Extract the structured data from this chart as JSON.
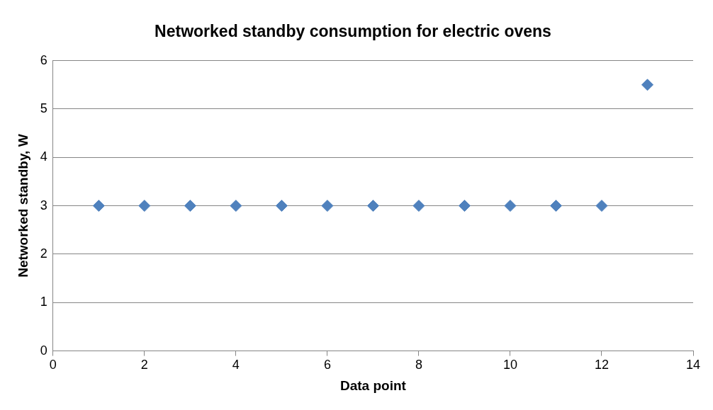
{
  "chart_data": {
    "type": "scatter",
    "title": "Networked standby consumption for electric ovens",
    "xlabel": "Data point",
    "ylabel": "Networked standby, W",
    "x": [
      1,
      2,
      3,
      4,
      5,
      6,
      7,
      8,
      9,
      10,
      11,
      12,
      13
    ],
    "series": [
      {
        "color": "#4f81bd",
        "values": [
          3,
          3,
          3,
          3,
          3,
          3,
          3,
          3,
          3,
          3,
          3,
          3,
          5.5
        ]
      }
    ],
    "xlim": [
      0,
      14
    ],
    "xticks": [
      0,
      2,
      4,
      6,
      8,
      10,
      12,
      14
    ],
    "ylim": [
      0,
      6
    ],
    "yticks": [
      0,
      1,
      2,
      3,
      4,
      5,
      6
    ],
    "grid": "y",
    "legend": false,
    "marker": "diamond"
  }
}
